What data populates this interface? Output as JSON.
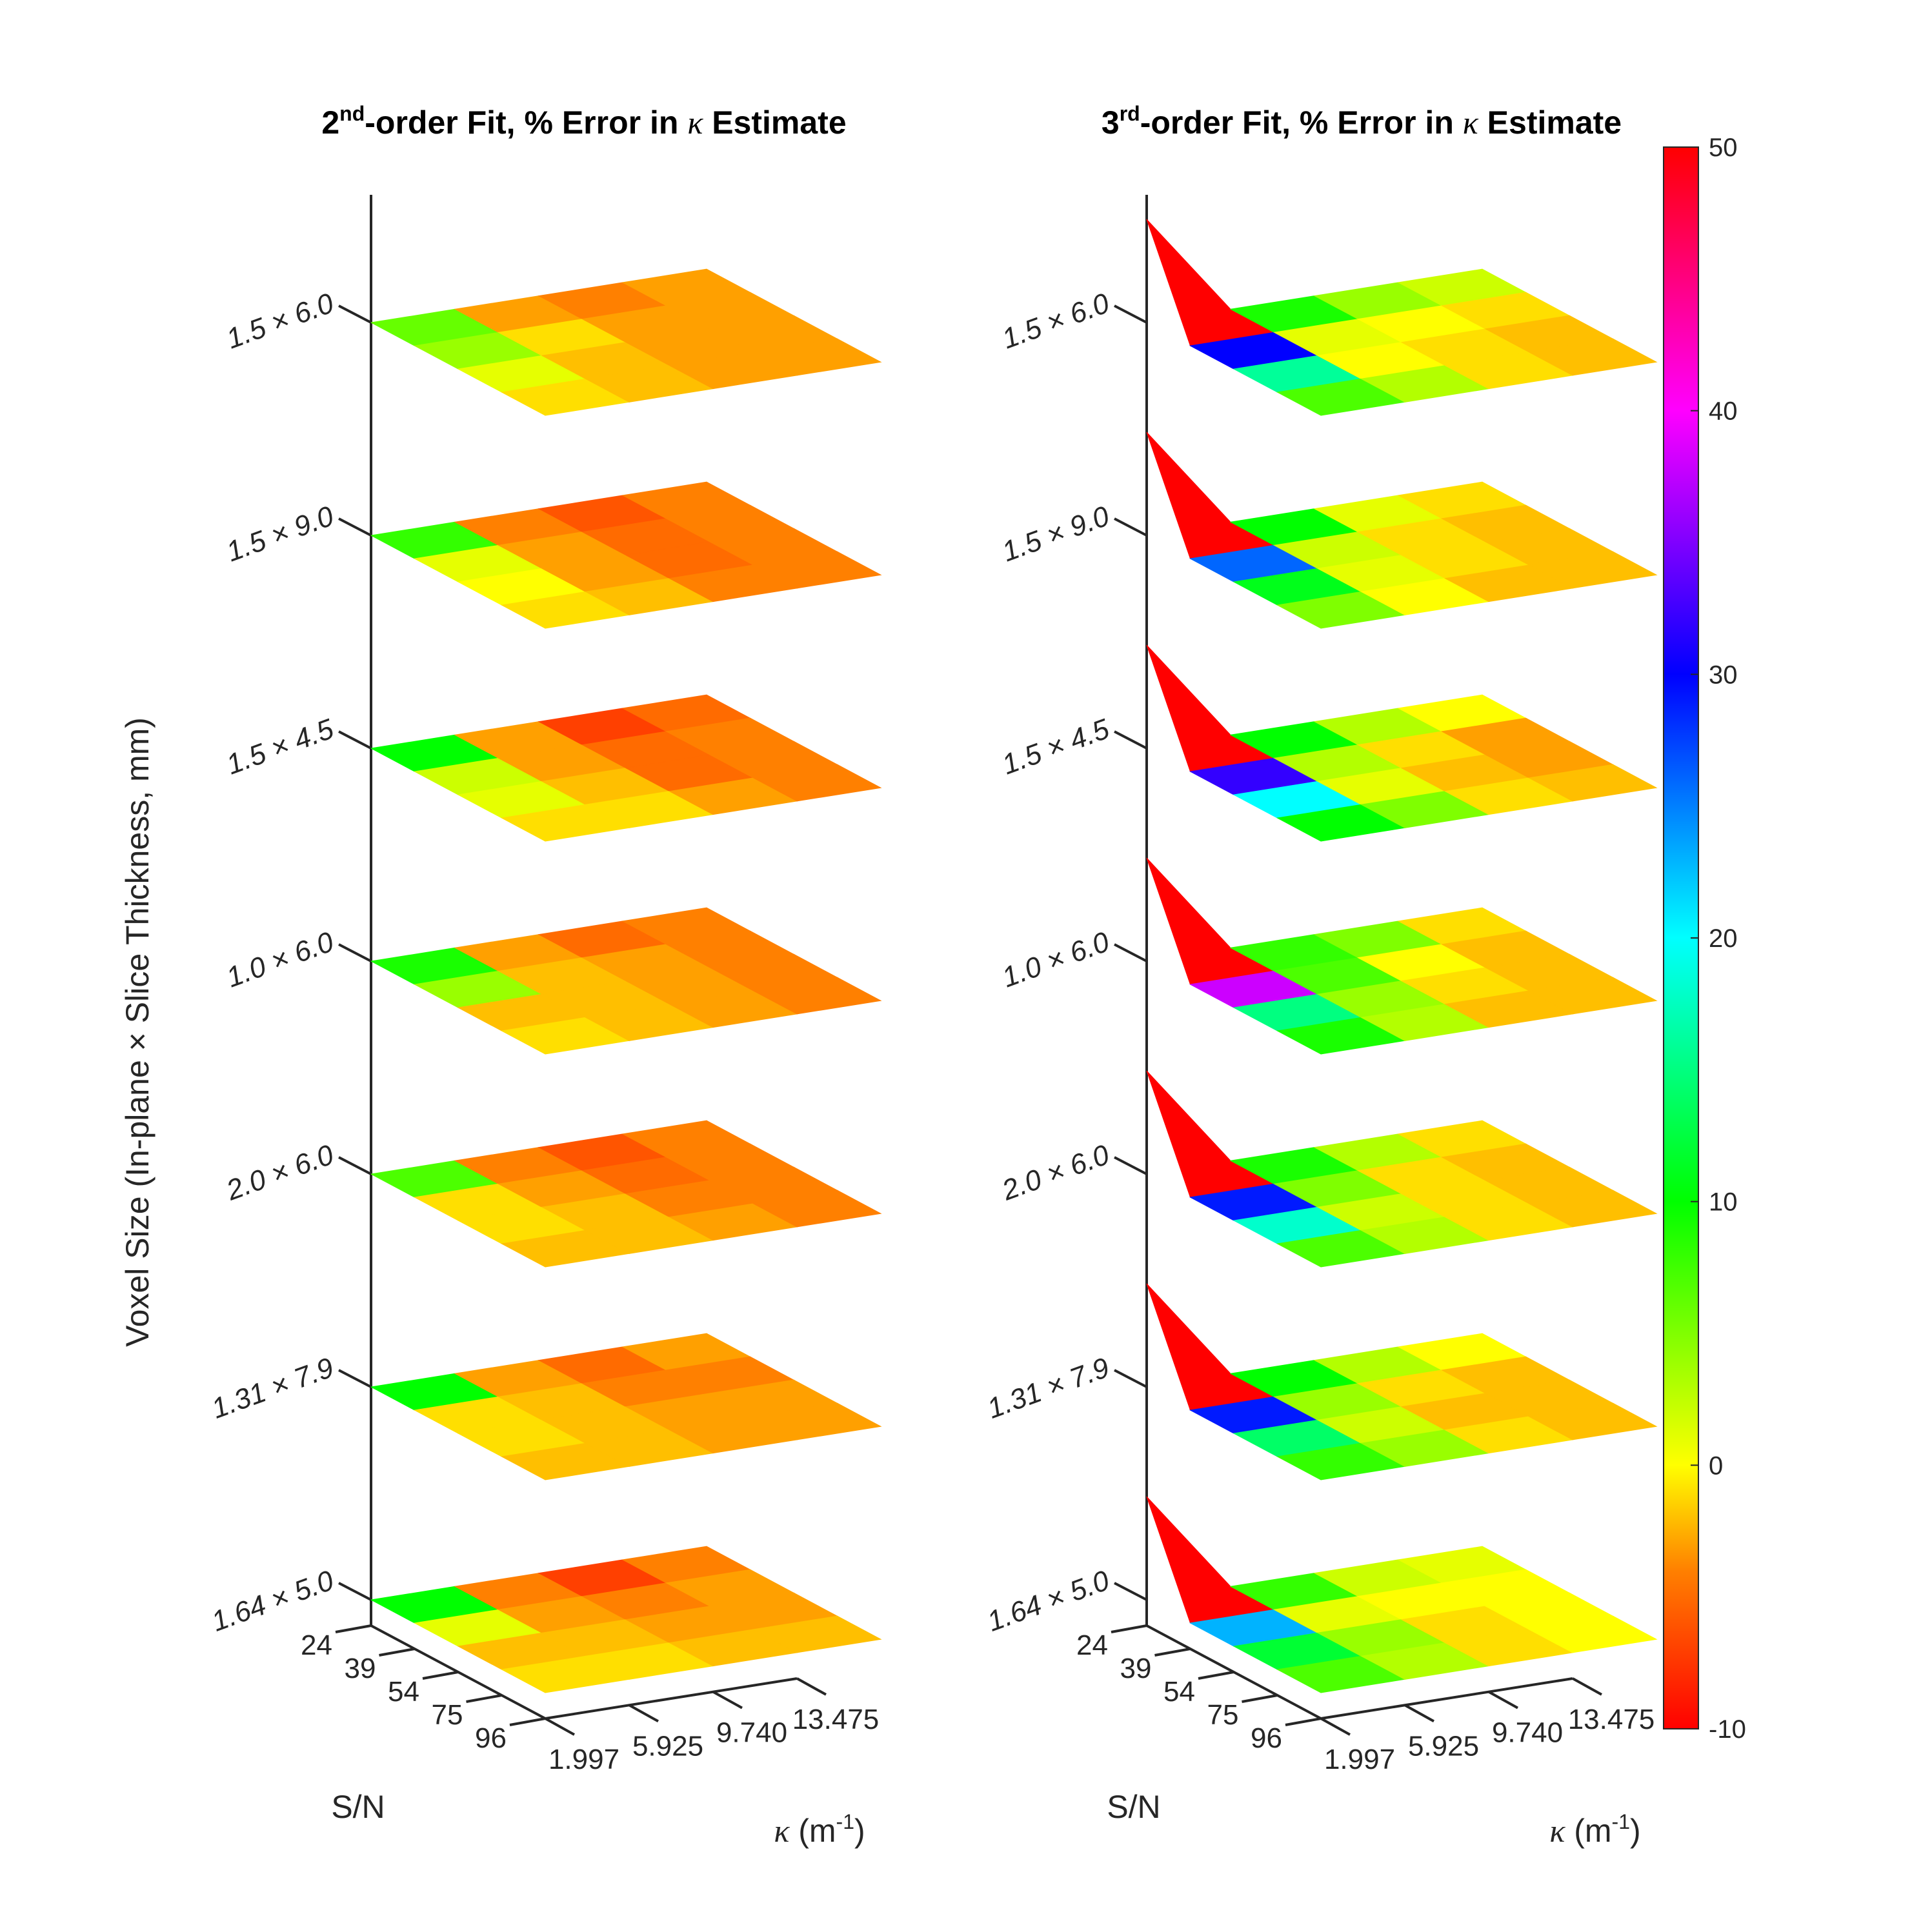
{
  "chart_data": [
    {
      "type": "surface",
      "title": {
        "pre": "2",
        "sup": "nd",
        "post": "-order Fit, % Error in ",
        "kappa": "κ",
        "end": " Estimate"
      },
      "zlabel": "Voxel Size (In-plane × Slice Thickness, mm)",
      "xlabel": "S/N",
      "ylabel": {
        "kappa": "κ",
        "text": " (m",
        "sup": "-1",
        "close": ")"
      },
      "sn_ticks": [
        "24",
        "39",
        "54",
        "75",
        "96"
      ],
      "kappa_ticks": [
        "1.997",
        "5.925",
        "9.740",
        "13.475"
      ],
      "voxel_labels": [
        "1.5 × 6.0",
        "1.5 × 9.0",
        "1.5 × 4.5",
        "1.0 × 6.0",
        "2.0 × 6.0",
        "1.31 × 7.9",
        "1.64 × 5.0"
      ],
      "grids": [
        [
          [
            6,
            -3,
            -4,
            -3
          ],
          [
            4,
            -1,
            -3,
            -3
          ],
          [
            1,
            -2,
            -3,
            -3
          ],
          [
            -1,
            -2,
            -3,
            -3
          ]
        ],
        [
          [
            8,
            -4,
            -6,
            -4
          ],
          [
            1,
            -3,
            -5,
            -4
          ],
          [
            0,
            -3,
            -5,
            -4
          ],
          [
            -1,
            -2,
            -4,
            -4
          ]
        ],
        [
          [
            10,
            -3,
            -7,
            -5
          ],
          [
            2,
            -3,
            -5,
            -4
          ],
          [
            1,
            -2,
            -5,
            -4
          ],
          [
            -1,
            -1,
            -3,
            -4
          ]
        ],
        [
          [
            9,
            -3,
            -5,
            -4
          ],
          [
            4,
            -2,
            -3,
            -4
          ],
          [
            -2,
            -2,
            -3,
            -4
          ],
          [
            -1,
            -2,
            -3,
            -4
          ]
        ],
        [
          [
            7,
            -4,
            -6,
            -4
          ],
          [
            -1,
            -3,
            -5,
            -4
          ],
          [
            -1,
            -2,
            -4,
            -4
          ],
          [
            -2,
            -2,
            -3,
            -4
          ]
        ],
        [
          [
            10,
            -3,
            -5,
            -3
          ],
          [
            -1,
            -2,
            -4,
            -4
          ],
          [
            -1,
            -2,
            -3,
            -3
          ],
          [
            -2,
            -2,
            -3,
            -3
          ]
        ],
        [
          [
            10,
            -4,
            -7,
            -4
          ],
          [
            1,
            -3,
            -4,
            -3
          ],
          [
            -2,
            -2,
            -3,
            -3
          ],
          [
            -1,
            -1,
            -2,
            -2
          ]
        ]
      ]
    },
    {
      "type": "surface",
      "title": {
        "pre": "3",
        "sup": "rd",
        "post": "-order Fit, % Error in ",
        "kappa": "κ",
        "end": " Estimate"
      },
      "xlabel": "S/N",
      "ylabel": {
        "kappa": "κ",
        "text": " (m",
        "sup": "-1",
        "close": ")"
      },
      "sn_ticks": [
        "24",
        "39",
        "54",
        "75",
        "96"
      ],
      "kappa_ticks": [
        "1.997",
        "5.925",
        "9.740",
        "13.475"
      ],
      "voxel_labels": [
        "1.5 × 6.0",
        "1.5 × 9.0",
        "1.5 × 4.5",
        "1.0 × 6.0",
        "2.0 × 6.0",
        "1.31 × 7.9",
        "1.64 × 5.0"
      ],
      "grids": [
        [
          [
            50,
            9,
            4,
            2
          ],
          [
            30,
            1,
            0,
            -1
          ],
          [
            16,
            0,
            -1,
            -2
          ],
          [
            7,
            3,
            -1,
            -2
          ]
        ],
        [
          [
            50,
            10,
            1,
            -1
          ],
          [
            26,
            2,
            -1,
            -2
          ],
          [
            11,
            1,
            -1,
            -2
          ],
          [
            5,
            0,
            -2,
            -2
          ]
        ],
        [
          [
            50,
            10,
            3,
            0
          ],
          [
            32,
            3,
            -1,
            -3
          ],
          [
            20,
            1,
            -2,
            -3
          ],
          [
            10,
            5,
            -1,
            -2
          ]
        ],
        [
          [
            50,
            8,
            5,
            -1
          ],
          [
            38,
            7,
            0,
            -2
          ],
          [
            15,
            4,
            -1,
            -2
          ],
          [
            9,
            3,
            -2,
            -2
          ]
        ],
        [
          [
            50,
            9,
            3,
            -1
          ],
          [
            29,
            5,
            -1,
            -2
          ],
          [
            18,
            2,
            -1,
            -2
          ],
          [
            7,
            3,
            -1,
            -2
          ]
        ],
        [
          [
            50,
            10,
            3,
            0
          ],
          [
            29,
            4,
            -1,
            -2
          ],
          [
            14,
            2,
            -2,
            -2
          ],
          [
            8,
            4,
            -1,
            -2
          ]
        ],
        [
          [
            50,
            8,
            2,
            1
          ],
          [
            23,
            1,
            0,
            0
          ],
          [
            12,
            4,
            -1,
            0
          ],
          [
            7,
            3,
            -1,
            0
          ]
        ]
      ]
    }
  ],
  "colorbar": {
    "ticks": [
      "50",
      "40",
      "30",
      "20",
      "10",
      "0",
      "-10"
    ],
    "min": -10,
    "max": 50,
    "colors": [
      "#ff0000",
      "#ffd700",
      "#ffff00",
      "#00ff00",
      "#00ffff",
      "#0000ff",
      "#ff00ff",
      "#ff0000"
    ]
  }
}
